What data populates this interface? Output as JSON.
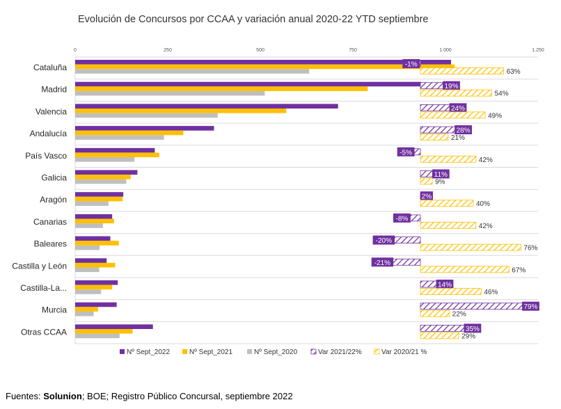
{
  "chart_data": {
    "type": "bar",
    "orientation": "horizontal",
    "title": "Evolución de Concursos por CCAA y variación anual 2020-22 YTD septiembre",
    "categories": [
      "Cataluña",
      "Madrid",
      "Valencia",
      "Andalucía",
      "País Vasco",
      "Galicia",
      "Aragón",
      "Canarias",
      "Baleares",
      "Castilla y León",
      "Castilla-La...",
      "Murcia",
      "Otras CCAA"
    ],
    "x_ticks": [
      "0",
      "250",
      "500",
      "750",
      "1.000",
      "1.250"
    ],
    "xlim": [
      0,
      1250
    ],
    "series": [
      {
        "name": "Nº Sept_2022",
        "color": "#7030A0",
        "values": [
          1015,
          935,
          710,
          375,
          215,
          168,
          130,
          100,
          95,
          85,
          115,
          112,
          210
        ]
      },
      {
        "name": "Nº Sept_2021",
        "color": "#FFC000",
        "values": [
          1025,
          790,
          570,
          292,
          227,
          150,
          128,
          105,
          118,
          108,
          100,
          62,
          155
        ]
      },
      {
        "name": "Nº Sept_2020",
        "color": "#BFBFBF",
        "values": [
          632,
          512,
          385,
          240,
          160,
          138,
          90,
          75,
          66,
          65,
          70,
          50,
          120
        ]
      }
    ],
    "variation_series": [
      {
        "name": "Var 2021/22%",
        "color": "#7030A0",
        "pattern": "hatch",
        "values": [
          -1,
          19,
          24,
          28,
          -5,
          11,
          2,
          -8,
          -20,
          -21,
          14,
          79,
          35
        ],
        "labels": [
          "-1%",
          "19%",
          "24%",
          "28%",
          "-5%",
          "11%",
          "2%",
          "-8%",
          "-20%",
          "-21%",
          "14%",
          "79%",
          "35%"
        ]
      },
      {
        "name": "Var 2020/21 %",
        "color": "#FFC000",
        "pattern": "hatch",
        "values": [
          63,
          54,
          49,
          21,
          42,
          9,
          40,
          42,
          76,
          67,
          46,
          22,
          29
        ],
        "labels": [
          "63%",
          "54%",
          "49%",
          "21%",
          "42%",
          "9%",
          "40%",
          "42%",
          "76%",
          "67%",
          "46%",
          "22%",
          "29%"
        ]
      }
    ],
    "legend_position": "bottom",
    "grid": "horizontal separators"
  },
  "footer": {
    "prefix": "Fuentes: ",
    "source_bold": "Solunion",
    "rest": "; BOE; Registro Público Concursal, septiembre 2022"
  }
}
